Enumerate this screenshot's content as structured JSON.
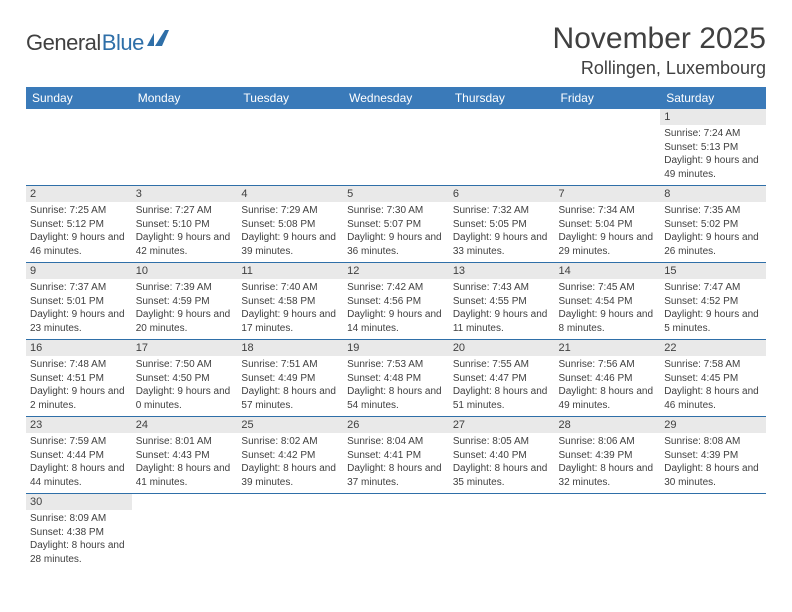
{
  "logo": {
    "dark": "General",
    "blue": "Blue"
  },
  "title": "November 2025",
  "location": "Rollingen, Luxembourg",
  "colors": {
    "header_bg": "#3a7ab9",
    "header_text": "#ffffff",
    "text": "#404040",
    "cell_divider": "#2f6fa8",
    "daynum_bg": "#e9e9e9",
    "page_bg": "#ffffff"
  },
  "weekdays": [
    "Sunday",
    "Monday",
    "Tuesday",
    "Wednesday",
    "Thursday",
    "Friday",
    "Saturday"
  ],
  "weeks": [
    [
      null,
      null,
      null,
      null,
      null,
      null,
      {
        "n": "1",
        "sr": "Sunrise: 7:24 AM",
        "ss": "Sunset: 5:13 PM",
        "dl": "Daylight: 9 hours and 49 minutes."
      }
    ],
    [
      {
        "n": "2",
        "sr": "Sunrise: 7:25 AM",
        "ss": "Sunset: 5:12 PM",
        "dl": "Daylight: 9 hours and 46 minutes."
      },
      {
        "n": "3",
        "sr": "Sunrise: 7:27 AM",
        "ss": "Sunset: 5:10 PM",
        "dl": "Daylight: 9 hours and 42 minutes."
      },
      {
        "n": "4",
        "sr": "Sunrise: 7:29 AM",
        "ss": "Sunset: 5:08 PM",
        "dl": "Daylight: 9 hours and 39 minutes."
      },
      {
        "n": "5",
        "sr": "Sunrise: 7:30 AM",
        "ss": "Sunset: 5:07 PM",
        "dl": "Daylight: 9 hours and 36 minutes."
      },
      {
        "n": "6",
        "sr": "Sunrise: 7:32 AM",
        "ss": "Sunset: 5:05 PM",
        "dl": "Daylight: 9 hours and 33 minutes."
      },
      {
        "n": "7",
        "sr": "Sunrise: 7:34 AM",
        "ss": "Sunset: 5:04 PM",
        "dl": "Daylight: 9 hours and 29 minutes."
      },
      {
        "n": "8",
        "sr": "Sunrise: 7:35 AM",
        "ss": "Sunset: 5:02 PM",
        "dl": "Daylight: 9 hours and 26 minutes."
      }
    ],
    [
      {
        "n": "9",
        "sr": "Sunrise: 7:37 AM",
        "ss": "Sunset: 5:01 PM",
        "dl": "Daylight: 9 hours and 23 minutes."
      },
      {
        "n": "10",
        "sr": "Sunrise: 7:39 AM",
        "ss": "Sunset: 4:59 PM",
        "dl": "Daylight: 9 hours and 20 minutes."
      },
      {
        "n": "11",
        "sr": "Sunrise: 7:40 AM",
        "ss": "Sunset: 4:58 PM",
        "dl": "Daylight: 9 hours and 17 minutes."
      },
      {
        "n": "12",
        "sr": "Sunrise: 7:42 AM",
        "ss": "Sunset: 4:56 PM",
        "dl": "Daylight: 9 hours and 14 minutes."
      },
      {
        "n": "13",
        "sr": "Sunrise: 7:43 AM",
        "ss": "Sunset: 4:55 PM",
        "dl": "Daylight: 9 hours and 11 minutes."
      },
      {
        "n": "14",
        "sr": "Sunrise: 7:45 AM",
        "ss": "Sunset: 4:54 PM",
        "dl": "Daylight: 9 hours and 8 minutes."
      },
      {
        "n": "15",
        "sr": "Sunrise: 7:47 AM",
        "ss": "Sunset: 4:52 PM",
        "dl": "Daylight: 9 hours and 5 minutes."
      }
    ],
    [
      {
        "n": "16",
        "sr": "Sunrise: 7:48 AM",
        "ss": "Sunset: 4:51 PM",
        "dl": "Daylight: 9 hours and 2 minutes."
      },
      {
        "n": "17",
        "sr": "Sunrise: 7:50 AM",
        "ss": "Sunset: 4:50 PM",
        "dl": "Daylight: 9 hours and 0 minutes."
      },
      {
        "n": "18",
        "sr": "Sunrise: 7:51 AM",
        "ss": "Sunset: 4:49 PM",
        "dl": "Daylight: 8 hours and 57 minutes."
      },
      {
        "n": "19",
        "sr": "Sunrise: 7:53 AM",
        "ss": "Sunset: 4:48 PM",
        "dl": "Daylight: 8 hours and 54 minutes."
      },
      {
        "n": "20",
        "sr": "Sunrise: 7:55 AM",
        "ss": "Sunset: 4:47 PM",
        "dl": "Daylight: 8 hours and 51 minutes."
      },
      {
        "n": "21",
        "sr": "Sunrise: 7:56 AM",
        "ss": "Sunset: 4:46 PM",
        "dl": "Daylight: 8 hours and 49 minutes."
      },
      {
        "n": "22",
        "sr": "Sunrise: 7:58 AM",
        "ss": "Sunset: 4:45 PM",
        "dl": "Daylight: 8 hours and 46 minutes."
      }
    ],
    [
      {
        "n": "23",
        "sr": "Sunrise: 7:59 AM",
        "ss": "Sunset: 4:44 PM",
        "dl": "Daylight: 8 hours and 44 minutes."
      },
      {
        "n": "24",
        "sr": "Sunrise: 8:01 AM",
        "ss": "Sunset: 4:43 PM",
        "dl": "Daylight: 8 hours and 41 minutes."
      },
      {
        "n": "25",
        "sr": "Sunrise: 8:02 AM",
        "ss": "Sunset: 4:42 PM",
        "dl": "Daylight: 8 hours and 39 minutes."
      },
      {
        "n": "26",
        "sr": "Sunrise: 8:04 AM",
        "ss": "Sunset: 4:41 PM",
        "dl": "Daylight: 8 hours and 37 minutes."
      },
      {
        "n": "27",
        "sr": "Sunrise: 8:05 AM",
        "ss": "Sunset: 4:40 PM",
        "dl": "Daylight: 8 hours and 35 minutes."
      },
      {
        "n": "28",
        "sr": "Sunrise: 8:06 AM",
        "ss": "Sunset: 4:39 PM",
        "dl": "Daylight: 8 hours and 32 minutes."
      },
      {
        "n": "29",
        "sr": "Sunrise: 8:08 AM",
        "ss": "Sunset: 4:39 PM",
        "dl": "Daylight: 8 hours and 30 minutes."
      }
    ],
    [
      {
        "n": "30",
        "sr": "Sunrise: 8:09 AM",
        "ss": "Sunset: 4:38 PM",
        "dl": "Daylight: 8 hours and 28 minutes."
      },
      null,
      null,
      null,
      null,
      null,
      null
    ]
  ]
}
